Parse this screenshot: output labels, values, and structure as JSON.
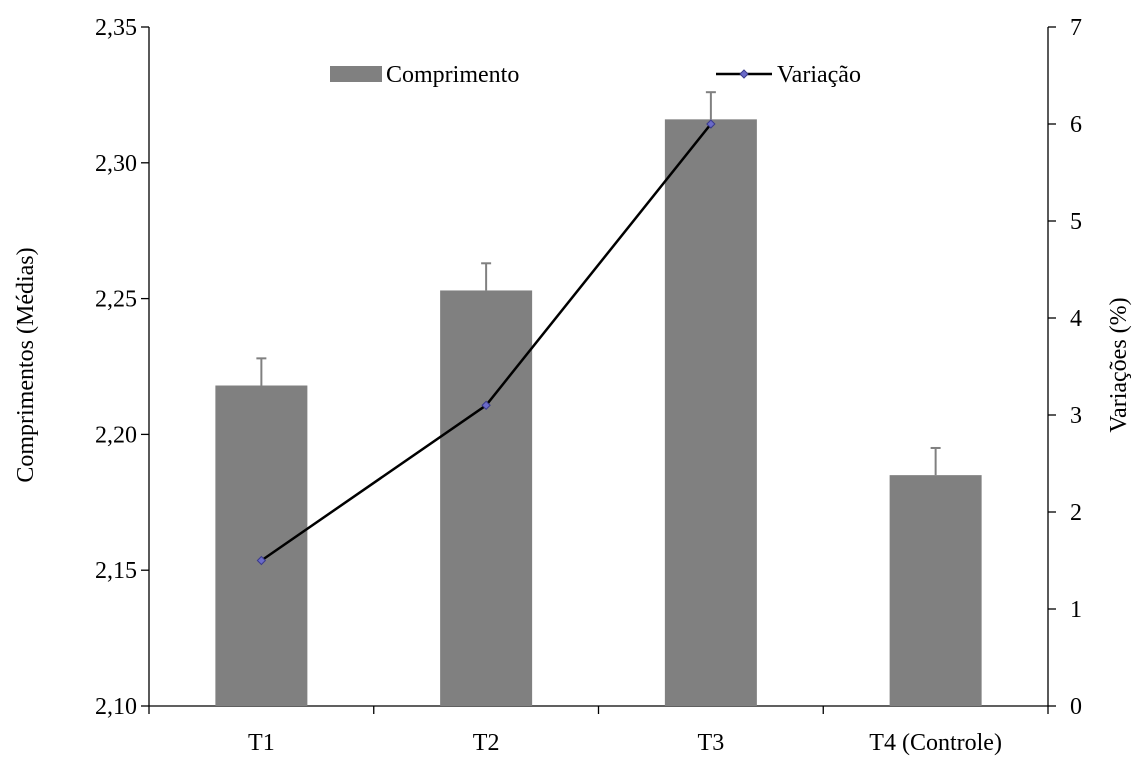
{
  "chart_data": {
    "type": "bar",
    "categories": [
      "T1",
      "T2",
      "T3",
      "T4 (Controle)"
    ],
    "series": [
      {
        "name": "Comprimento",
        "type": "bar",
        "axis": "left",
        "values": [
          2.218,
          2.253,
          2.316,
          2.185
        ],
        "error": [
          0.01,
          0.01,
          0.01,
          0.01
        ],
        "color": "#808080"
      },
      {
        "name": "Variação",
        "type": "line",
        "axis": "right",
        "values": [
          1.5,
          3.1,
          6.0,
          null
        ],
        "color": "#000000",
        "marker_color": "#6a6ac8"
      }
    ],
    "ylabel": "Comprimentos (Médias)",
    "y2label": "Variações (%)",
    "ylim": [
      2.1,
      2.35
    ],
    "yticks": [
      "2,10",
      "2,15",
      "2,20",
      "2,25",
      "2,30",
      "2,35"
    ],
    "y2lim": [
      0,
      7
    ],
    "y2ticks": [
      "0",
      "1",
      "2",
      "3",
      "4",
      "5",
      "6",
      "7"
    ],
    "grid": false,
    "legend": "top"
  }
}
